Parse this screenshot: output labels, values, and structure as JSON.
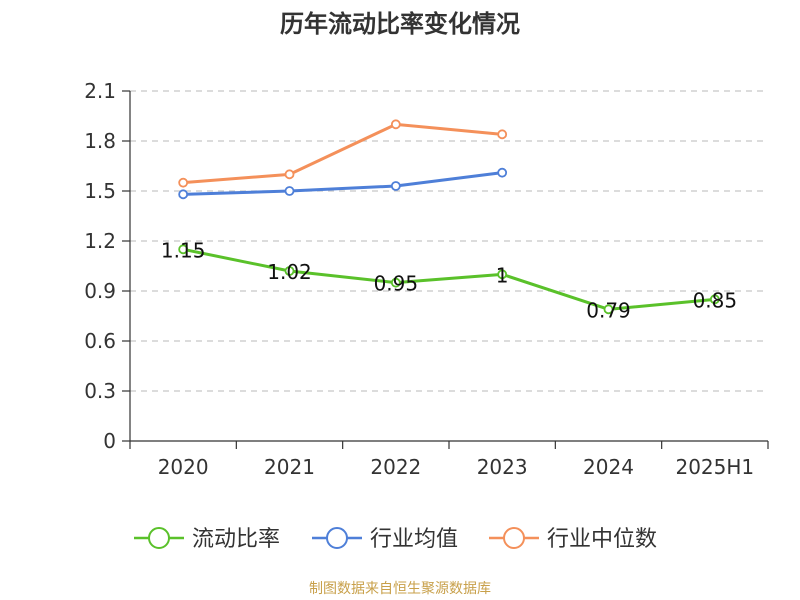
{
  "chart_data": {
    "type": "line",
    "title": "历年流动比率变化情况",
    "categories": [
      "2020",
      "2021",
      "2022",
      "2023",
      "2024",
      "2025H1"
    ],
    "ylim": [
      0,
      2.1
    ],
    "yticks": [
      "0",
      "0.3",
      "0.6",
      "0.9",
      "1.2",
      "1.5",
      "1.8",
      "2.1"
    ],
    "grid": true,
    "legend_position": "bottom",
    "series": [
      {
        "name": "流动比率",
        "color": "#5ac12a",
        "values": [
          1.15,
          1.02,
          0.95,
          1.0,
          0.79,
          0.85
        ],
        "labels": [
          "1.15",
          "1.02",
          "0.95",
          "1",
          "0.79",
          "0.85"
        ]
      },
      {
        "name": "行业均值",
        "color": "#4e7fd8",
        "values": [
          1.48,
          1.5,
          1.53,
          1.61,
          null,
          null
        ]
      },
      {
        "name": "行业中位数",
        "color": "#f4905a",
        "values": [
          1.55,
          1.6,
          1.9,
          1.84,
          null,
          null
        ]
      }
    ]
  },
  "source_note": "制图数据来自恒生聚源数据库"
}
